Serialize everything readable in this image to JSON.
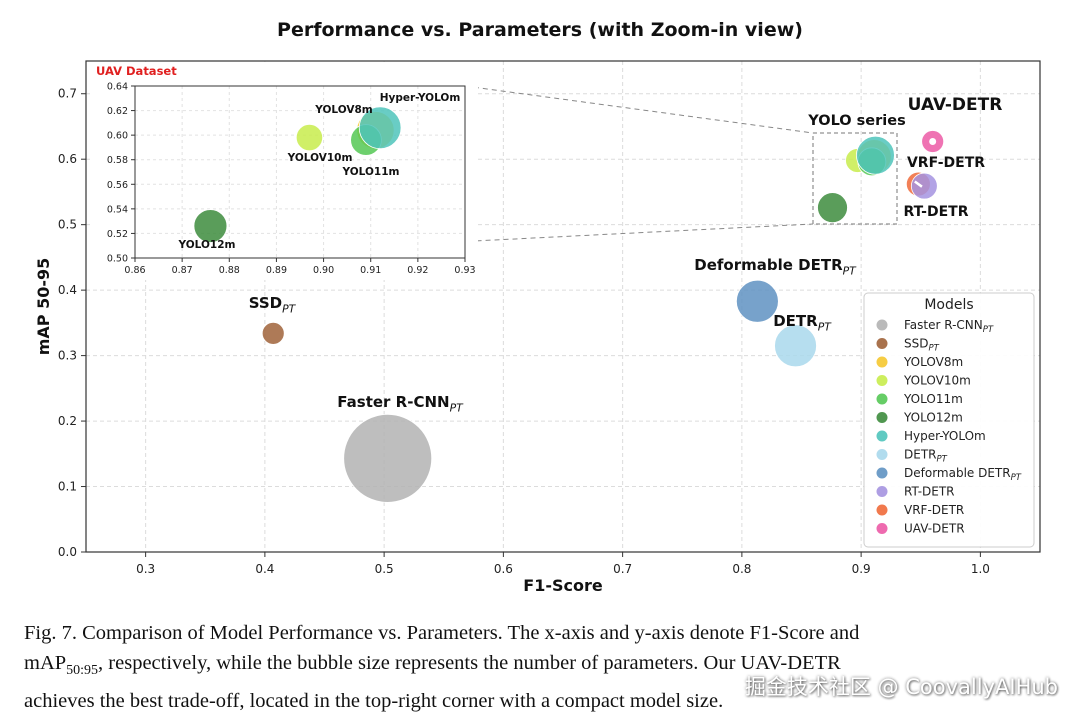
{
  "chart_data": {
    "type": "scatter",
    "title": "Performance vs. Parameters (with Zoom-in view)",
    "xlabel": "F1-Score",
    "ylabel": "mAP 50-95",
    "xlim": [
      0.25,
      1.05
    ],
    "ylim": [
      0.0,
      0.75
    ],
    "xticks": [
      "0.3",
      "0.4",
      "0.5",
      "0.6",
      "0.7",
      "0.8",
      "0.9",
      "1.0"
    ],
    "yticks": [
      "0.0",
      "0.1",
      "0.2",
      "0.3",
      "0.4",
      "0.5",
      "0.6",
      "0.7"
    ],
    "grid": true,
    "legend_title": "Models",
    "legend_position": "lower-right",
    "points": [
      {
        "name": "Faster R-CNN",
        "sub": "PT",
        "x": 0.503,
        "y": 0.143,
        "size": 44,
        "color": "#b3b3b3"
      },
      {
        "name": "SSD",
        "sub": "PT",
        "x": 0.407,
        "y": 0.334,
        "size": 11,
        "color": "#a0633a"
      },
      {
        "name": "YOLOV8m",
        "sub": "",
        "x": 0.911,
        "y": 0.604,
        "size": 17,
        "color": "#f5c830"
      },
      {
        "name": "YOLOV10m",
        "sub": "",
        "x": 0.897,
        "y": 0.598,
        "size": 12,
        "color": "#c8ec4c"
      },
      {
        "name": "YOLO11m",
        "sub": "",
        "x": 0.909,
        "y": 0.596,
        "size": 14,
        "color": "#55c855"
      },
      {
        "name": "YOLO12m",
        "sub": "",
        "x": 0.876,
        "y": 0.526,
        "size": 15,
        "color": "#3d8c3d"
      },
      {
        "name": "Hyper-YOLOm",
        "sub": "",
        "x": 0.912,
        "y": 0.606,
        "size": 19,
        "color": "#4fc4bb"
      },
      {
        "name": "DETR",
        "sub": "PT",
        "x": 0.845,
        "y": 0.315,
        "size": 21,
        "color": "#a9d8ec"
      },
      {
        "name": "Deformable DETR",
        "sub": "PT",
        "x": 0.813,
        "y": 0.383,
        "size": 21,
        "color": "#5f92c2"
      },
      {
        "name": "RT-DETR",
        "sub": "",
        "x": 0.953,
        "y": 0.559,
        "size": 13,
        "color": "#a593e0"
      },
      {
        "name": "VRF-DETR",
        "sub": "",
        "x": 0.948,
        "y": 0.562,
        "size": 12,
        "color": "#f06a3a"
      },
      {
        "name": "UAV-DETR",
        "sub": "",
        "x": 0.96,
        "y": 0.627,
        "size": 11,
        "color": "#ec5aa6"
      }
    ],
    "annotations": {
      "yolo_series": "YOLO series",
      "uav_detr": "UAV-DETR",
      "vrf_detr": "VRF-DETR",
      "rt_detr": "RT-DETR",
      "ssd": "SSD",
      "faster_rcnn": "Faster R-CNN",
      "detr": "DETR",
      "deformable_detr": "Deformable DETR",
      "subscript": "PT"
    },
    "inset": {
      "label": "UAV Dataset",
      "xlim": [
        0.86,
        0.93
      ],
      "ylim": [
        0.5,
        0.64
      ],
      "xticks": [
        "0.86",
        "0.87",
        "0.88",
        "0.89",
        "0.90",
        "0.91",
        "0.92",
        "0.93"
      ],
      "yticks": [
        "0.50",
        "0.52",
        "0.54",
        "0.56",
        "0.58",
        "0.60",
        "0.62",
        "0.64"
      ],
      "labels": [
        "YOLOV8m",
        "Hyper-YOLOm",
        "YOLOV10m",
        "YOLO11m",
        "YOLO12m"
      ]
    }
  },
  "caption": {
    "line1": "Fig. 7.  Comparison of Model Performance vs.  Parameters.  The x-axis and y-axis denote F1-Score and",
    "line2_pre": "mAP",
    "line2_sub": "50:95",
    "line2_post": ", respectively, while the bubble size represents the number of parameters.  Our UAV-DETR",
    "line3": "achieves the best trade-off, located in the top-right corner with a compact model size."
  },
  "watermark": "掘金技术社区 @ CoovallyAIHub"
}
